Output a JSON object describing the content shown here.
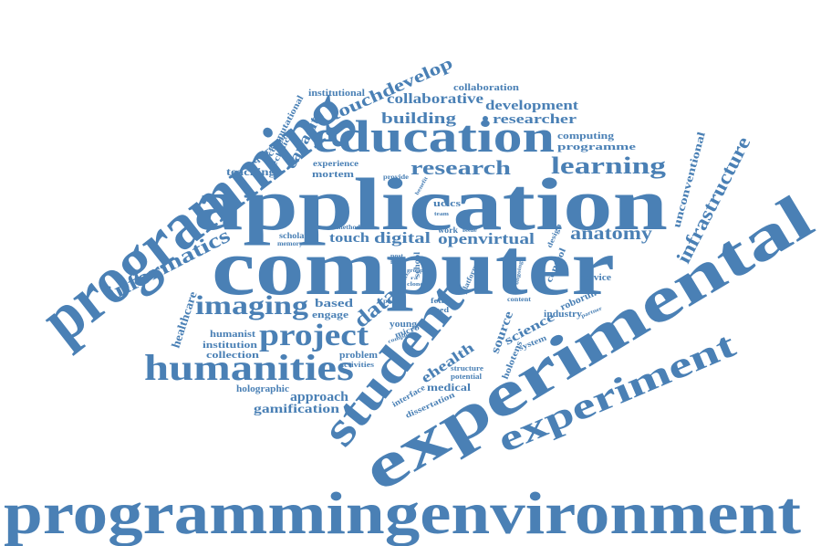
{
  "color": "#4a80b5",
  "words": {
    "programmingenvironment": "programmingenvironment",
    "programming": "programming",
    "application": "application",
    "computer": "computer",
    "experimental": "experimental",
    "education": "education",
    "student": "student",
    "experiment": "experiment",
    "humanities": "humanities",
    "project": "project",
    "imaging": "imaging",
    "informatics": "informatics",
    "research": "research",
    "learning": "learning",
    "infrastructure": "infrastructure",
    "anatomy": "anatomy",
    "data": "data",
    "touchdevelop": "touchdevelop",
    "building": "building",
    "collaborative": "collaborative",
    "development": "development",
    "researcher": "researcher",
    "collaboration": "collaboration",
    "capacity": "capacity",
    "institutional": "institutional",
    "computational": "computational",
    "technical": "technical",
    "requirement": "requirement",
    "teaching": "teaching",
    "experience": "experience",
    "mortem": "mortem",
    "computing": "computing",
    "programme": "programme",
    "unconventional": "unconventional",
    "healthcare": "healthcare",
    "digital": "digital",
    "touch": "touch",
    "openvirtual": "openvirtual",
    "uclcs": "uclcs",
    "based": "based",
    "engage": "engage",
    "humanist": "humanist",
    "institution": "institution",
    "collection": "collection",
    "holographic": "holographic",
    "approach": "approach",
    "gamification": "gamification",
    "problem": "problem",
    "activities": "activities",
    "young": "young",
    "micro": "micro",
    "ehealth": "ehealth",
    "medical": "medical",
    "interface": "interface",
    "dissertation": "dissertation",
    "structure": "structure",
    "potential": "potential",
    "holotens": "holotens",
    "source": "source",
    "science": "science",
    "industry": "industry",
    "system": "system",
    "control": "control",
    "roborun": "roborun",
    "partner": "partner",
    "service": "service",
    "design": "design",
    "content": "content",
    "platform": "platform",
    "ongoing": "ongoing",
    "work": "work",
    "issue": "issue",
    "method": "method",
    "scholar": "scholar",
    "memory": "memory",
    "post": "post",
    "flow": "flow",
    "provide": "provide",
    "team": "team",
    "peach": "peach",
    "fetal": "fetal",
    "need": "need",
    "complex": "complex",
    "context": "context",
    "school": "school",
    "benefit": "benefit",
    "clone": "clone",
    "ra": "ra",
    "group": "group"
  }
}
